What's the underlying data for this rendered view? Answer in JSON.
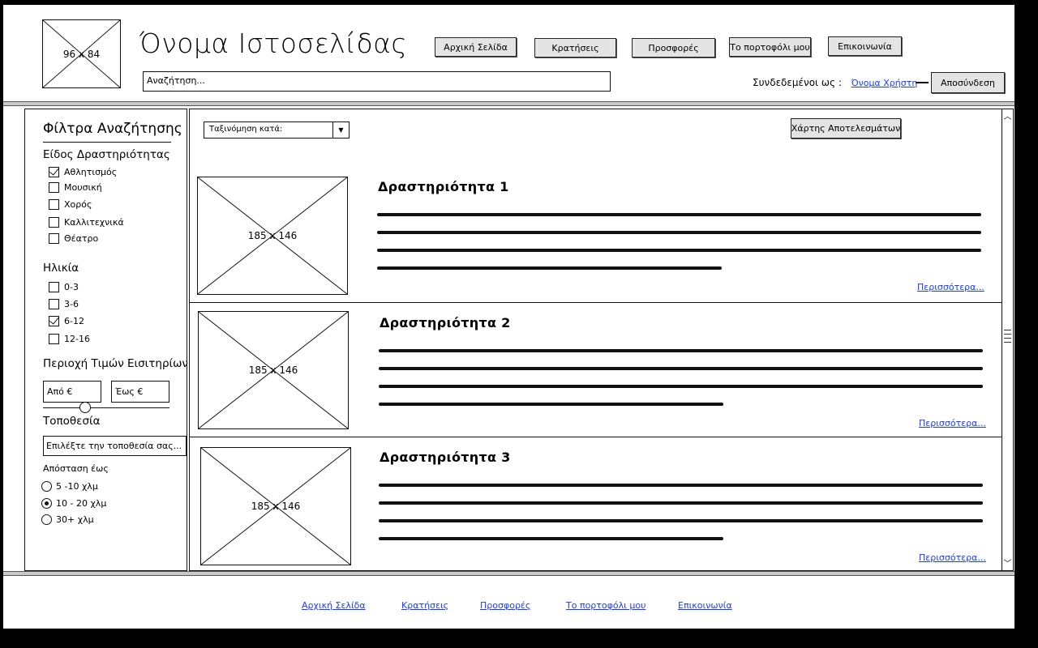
{
  "header": {
    "logo_label": "96 x 84",
    "site_title": "Όνομα Ιστοσελίδας",
    "search_placeholder": "Αναζήτηση...",
    "nav": [
      "Αρχική Σελίδα",
      "Κρατήσεις",
      "Προσφορές",
      "Το πορτοφόλι μου",
      "Επικοινωνία"
    ],
    "logged_in_label": "Συνδεδεμένοι ως :",
    "username": "Όνομα Χρήστη",
    "logout": "Αποσύνδεση"
  },
  "sidebar": {
    "title": "Φίλτρα Αναζήτησης",
    "activity_type_heading": "Είδος Δραστηριότητας",
    "activity_types": [
      {
        "label": "Αθλητισμός",
        "checked": true
      },
      {
        "label": "Μουσική",
        "checked": false
      },
      {
        "label": "Χορός",
        "checked": false
      },
      {
        "label": "Καλλιτεχνικά",
        "checked": false
      },
      {
        "label": "Θέατρο",
        "checked": false
      }
    ],
    "age_heading": "Ηλικία",
    "ages": [
      {
        "label": "0-3",
        "checked": false
      },
      {
        "label": "3-6",
        "checked": false
      },
      {
        "label": "6-12",
        "checked": true
      },
      {
        "label": "12-16",
        "checked": false
      }
    ],
    "price_heading": "Περιοχή Τιμών Εισιτηρίων",
    "price_from": "Από €",
    "price_to": "Έως €",
    "location_heading": "Τοποθεσία",
    "location_placeholder": "Επιλέξτε την τοποθεσία σας... |",
    "distance_heading": "Απόσταση έως",
    "distances": [
      {
        "label": "5 -10 χλμ",
        "checked": false
      },
      {
        "label": "10 - 20 χλμ",
        "checked": true
      },
      {
        "label": "30+ χλμ",
        "checked": false
      }
    ]
  },
  "main": {
    "sort_label": "Ταξινόμηση κατά:",
    "map_button": "Χάρτης Αποτελεσμάτων",
    "results": [
      {
        "title": "Δραστηριότητα 1",
        "image_label": "185 x 146",
        "more": "Περισσότερα..."
      },
      {
        "title": "Δραστηριότητα 2",
        "image_label": "185 x 146",
        "more": "Περισσότερα..."
      },
      {
        "title": "Δραστηριότητα 3",
        "image_label": "185 x 146",
        "more": "Περισσότερα..."
      }
    ]
  },
  "footer": {
    "links": [
      "Αρχική Σελίδα",
      "Κρατήσεις",
      "Προσφορές",
      "Το πορτοφόλι μου",
      "Επικοινωνία"
    ]
  }
}
